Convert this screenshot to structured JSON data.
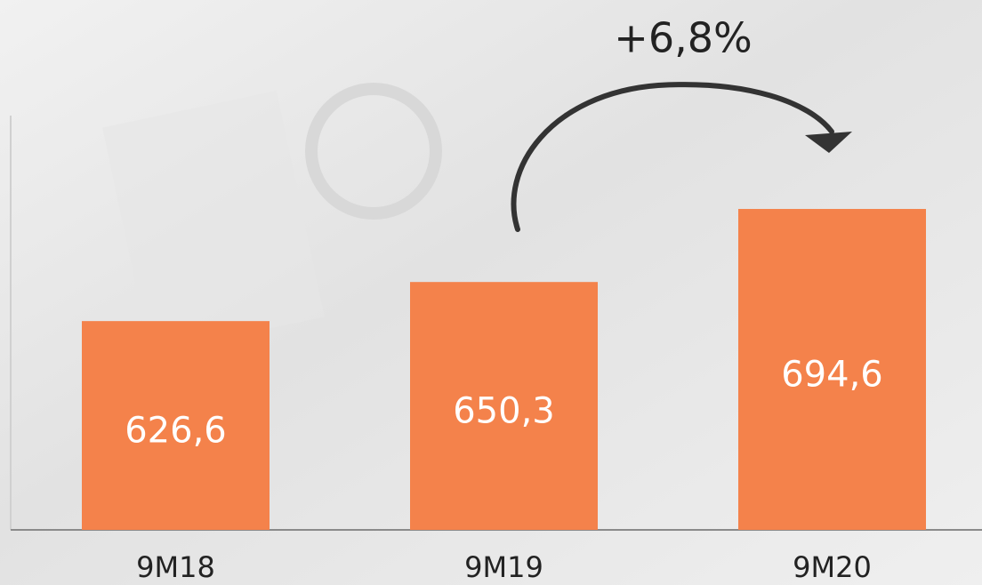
{
  "chart_data": {
    "type": "bar",
    "annotation": "+6,8%",
    "categories": [
      "9M18",
      "9M19",
      "9M20"
    ],
    "values": [
      626.6,
      650.3,
      694.6
    ],
    "value_labels": [
      "626,6",
      "650,3",
      "694,6"
    ],
    "color": "#f4824b",
    "ylim": [
      500,
      800
    ]
  }
}
